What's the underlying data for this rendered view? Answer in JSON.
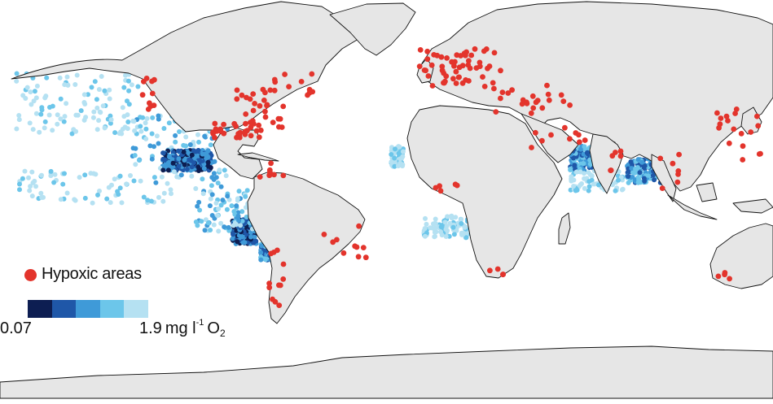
{
  "legend": {
    "hypoxic_label": "Hypoxic areas",
    "scale_min": "0.07",
    "scale_max_value": "1.9",
    "scale_max_unit": "mg l",
    "scale_max_exponent": "-1",
    "scale_max_species": "O",
    "scale_max_subscript": "2"
  },
  "colors": {
    "land": "#e6e6e6",
    "coast": "#111111",
    "hypoxic_marker": "#e3342c",
    "oxygen_scale": [
      "#0d1e52",
      "#1f57a8",
      "#3f9ad8",
      "#6cc6ea",
      "#b5e1f2"
    ]
  }
}
